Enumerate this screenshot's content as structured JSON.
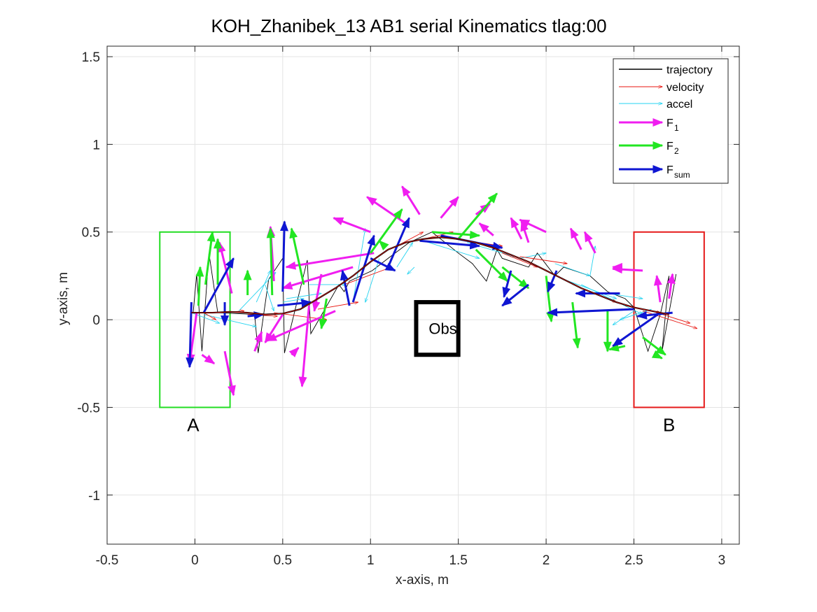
{
  "chart_data": {
    "type": "line",
    "title": "KOH_Zhanibek_13    AB1    serial    Kinematics tlag:00",
    "xlabel": "x-axis, m",
    "ylabel": "y-axis, m",
    "xlim": [
      -0.5,
      3.1
    ],
    "ylim": [
      -1.28,
      1.56
    ],
    "xticks": [
      -0.5,
      0,
      0.5,
      1,
      1.5,
      2,
      2.5,
      3
    ],
    "xtick_labels": [
      "-0.5",
      "0",
      "0.5",
      "1",
      "1.5",
      "2",
      "2.5",
      "3"
    ],
    "yticks": [
      -1,
      -0.5,
      0,
      0.5,
      1,
      1.5
    ],
    "ytick_labels": [
      "-1",
      "-0.5",
      "0",
      "0.5",
      "1",
      "1.5"
    ],
    "grid": true,
    "legend_position": "top-right",
    "colors": {
      "trajectory": "#000000",
      "velocity": "#e8150f",
      "accel": "#23d3f0",
      "F1": "#f01ef0",
      "F2": "#22e622",
      "Fsum": "#0f16d2",
      "regionA": "#22dd22",
      "regionB": "#e51a1a",
      "obstacle": "#000000"
    },
    "legend": [
      {
        "key": "trajectory",
        "label": "trajectory",
        "sub": ""
      },
      {
        "key": "velocity",
        "label": "velocity",
        "sub": ""
      },
      {
        "key": "accel",
        "label": "accel",
        "sub": ""
      },
      {
        "key": "F1",
        "label": "F",
        "sub": "1"
      },
      {
        "key": "F2",
        "label": "F",
        "sub": "2"
      },
      {
        "key": "Fsum",
        "label": "F",
        "sub": "sum"
      }
    ],
    "regions": [
      {
        "name": "A",
        "color": "regionA",
        "x": [
          -0.2,
          0.2
        ],
        "y": [
          -0.5,
          0.5
        ],
        "label_at": [
          -0.01,
          -0.6
        ]
      },
      {
        "name": "B",
        "color": "regionB",
        "x": [
          2.5,
          2.9
        ],
        "y": [
          -0.5,
          0.5
        ],
        "label_at": [
          2.7,
          -0.6
        ]
      }
    ],
    "obstacle": {
      "label": "Obs",
      "x": [
        1.26,
        1.5
      ],
      "y": [
        -0.2,
        0.1
      ]
    },
    "trajectory": [
      [
        -0.02,
        0.04
      ],
      [
        0.1,
        0.04
      ],
      [
        0.2,
        0.045
      ],
      [
        0.3,
        0.04
      ],
      [
        0.4,
        0.03
      ],
      [
        0.5,
        0.035
      ],
      [
        0.6,
        0.06
      ],
      [
        0.7,
        0.12
      ],
      [
        0.8,
        0.18
      ],
      [
        0.9,
        0.25
      ],
      [
        1.0,
        0.33
      ],
      [
        1.1,
        0.4
      ],
      [
        1.2,
        0.44
      ],
      [
        1.3,
        0.46
      ],
      [
        1.4,
        0.47
      ],
      [
        1.5,
        0.46
      ],
      [
        1.6,
        0.44
      ],
      [
        1.7,
        0.41
      ],
      [
        1.8,
        0.37
      ],
      [
        1.9,
        0.33
      ],
      [
        2.0,
        0.28
      ],
      [
        2.1,
        0.23
      ],
      [
        2.2,
        0.18
      ],
      [
        2.3,
        0.14
      ],
      [
        2.4,
        0.1
      ],
      [
        2.5,
        0.07
      ],
      [
        2.6,
        0.05
      ],
      [
        2.7,
        0.03
      ]
    ],
    "zigzag": [
      [
        -0.01,
        0.04
      ],
      [
        0.01,
        0.26
      ],
      [
        0.04,
        -0.18
      ],
      [
        0.08,
        0.38
      ],
      [
        0.13,
        0.04
      ],
      [
        0.34,
        0.03
      ],
      [
        0.36,
        -0.19
      ],
      [
        0.42,
        0.23
      ],
      [
        0.5,
        0.35
      ],
      [
        0.51,
        -0.19
      ],
      [
        0.64,
        0.34
      ],
      [
        0.66,
        -0.08
      ],
      [
        0.82,
        0.2
      ],
      [
        0.85,
        0.16
      ],
      [
        0.88,
        0.22
      ],
      [
        1.01,
        0.28
      ],
      [
        1.1,
        0.35
      ],
      [
        1.22,
        0.44
      ],
      [
        1.35,
        0.5
      ],
      [
        1.5,
        0.38
      ],
      [
        1.58,
        0.32
      ],
      [
        1.66,
        0.22
      ],
      [
        1.72,
        0.4
      ],
      [
        1.75,
        0.35
      ],
      [
        1.9,
        0.3
      ],
      [
        1.95,
        0.38
      ],
      [
        2.05,
        0.25
      ],
      [
        2.1,
        0.3
      ],
      [
        2.25,
        0.25
      ],
      [
        2.35,
        0.16
      ],
      [
        2.45,
        0.12
      ],
      [
        2.5,
        0.07
      ],
      [
        2.58,
        -0.18
      ],
      [
        2.65,
        0.03
      ],
      [
        2.7,
        0.25
      ],
      [
        2.66,
        -0.18
      ],
      [
        2.74,
        0.26
      ]
    ],
    "arrows": {
      "velocity": [
        [
          0.05,
          0.04,
          0.12,
          0.0
        ],
        [
          0.15,
          0.04,
          0.28,
          0.05
        ],
        [
          0.3,
          0.03,
          0.47,
          0.02
        ],
        [
          0.45,
          0.04,
          0.75,
          0.0
        ],
        [
          0.7,
          0.06,
          0.93,
          0.1
        ],
        [
          0.85,
          0.2,
          1.12,
          0.3
        ],
        [
          1.15,
          0.42,
          1.3,
          0.5
        ],
        [
          1.3,
          0.46,
          1.47,
          0.5
        ],
        [
          1.55,
          0.45,
          1.75,
          0.42
        ],
        [
          1.75,
          0.38,
          1.95,
          0.3
        ],
        [
          1.85,
          0.36,
          2.12,
          0.32
        ],
        [
          2.2,
          0.18,
          2.4,
          0.1
        ],
        [
          2.45,
          0.08,
          2.65,
          0.04
        ],
        [
          2.55,
          0.05,
          2.86,
          -0.05
        ],
        [
          2.6,
          0.05,
          2.82,
          -0.02
        ]
      ],
      "accel": [
        [
          -0.02,
          0.04,
          0.14,
          -0.02
        ],
        [
          0.05,
          0.03,
          0.35,
          -0.04
        ],
        [
          0.25,
          0.05,
          0.46,
          0.27
        ],
        [
          0.35,
          0.1,
          0.43,
          0.28
        ],
        [
          0.4,
          0.2,
          0.45,
          0.05
        ],
        [
          0.5,
          0.1,
          0.62,
          0.12
        ],
        [
          0.52,
          0.12,
          0.72,
          0.15
        ],
        [
          0.65,
          0.2,
          0.86,
          0.2
        ],
        [
          0.9,
          0.1,
          0.97,
          0.52
        ],
        [
          1.05,
          0.35,
          0.97,
          0.1
        ],
        [
          1.15,
          0.3,
          1.24,
          0.44
        ],
        [
          1.25,
          0.3,
          1.21,
          0.26
        ],
        [
          1.3,
          0.45,
          1.62,
          0.35
        ],
        [
          1.55,
          0.44,
          1.82,
          0.36
        ],
        [
          1.85,
          0.35,
          2.0,
          0.38
        ],
        [
          2.05,
          0.32,
          2.25,
          0.25
        ],
        [
          2.1,
          0.23,
          2.4,
          0.12
        ],
        [
          2.2,
          0.2,
          2.55,
          0.03
        ],
        [
          2.25,
          0.25,
          2.28,
          0.42
        ],
        [
          2.35,
          0.15,
          2.55,
          0.12
        ],
        [
          2.5,
          0.05,
          2.38,
          -0.03
        ],
        [
          2.6,
          0.06,
          2.42,
          0.0
        ]
      ],
      "F1": [
        [
          0.04,
          -0.2,
          0.11,
          -0.25
        ],
        [
          0.17,
          -0.18,
          0.22,
          -0.43
        ],
        [
          0.01,
          0.04,
          -0.03,
          -0.25
        ],
        [
          0.21,
          0.15,
          0.14,
          0.44
        ],
        [
          0.34,
          -0.18,
          0.38,
          -0.07
        ],
        [
          0.45,
          0.22,
          0.43,
          0.53
        ],
        [
          0.5,
          0.03,
          0.4,
          -0.13
        ],
        [
          0.55,
          -0.2,
          0.59,
          -0.16
        ],
        [
          0.65,
          0.08,
          0.61,
          -0.38
        ],
        [
          0.72,
          0.26,
          0.68,
          0.05
        ],
        [
          0.8,
          0.05,
          0.41,
          -0.12
        ],
        [
          0.9,
          0.3,
          0.5,
          0.18
        ],
        [
          1.02,
          0.38,
          0.52,
          0.3
        ],
        [
          1.0,
          0.5,
          0.79,
          0.58
        ],
        [
          1.2,
          0.55,
          0.98,
          0.7
        ],
        [
          1.28,
          0.6,
          1.18,
          0.76
        ],
        [
          1.4,
          0.58,
          1.5,
          0.7
        ],
        [
          1.6,
          0.6,
          1.68,
          0.66
        ],
        [
          1.7,
          0.48,
          1.62,
          0.55
        ],
        [
          1.86,
          0.46,
          1.8,
          0.58
        ],
        [
          1.9,
          0.44,
          1.86,
          0.56
        ],
        [
          2.0,
          0.5,
          1.85,
          0.57
        ],
        [
          2.2,
          0.4,
          2.14,
          0.52
        ],
        [
          2.28,
          0.38,
          2.22,
          0.5
        ],
        [
          2.42,
          0.3,
          2.38,
          0.3
        ],
        [
          2.55,
          0.28,
          2.38,
          0.29
        ],
        [
          2.65,
          0.1,
          2.63,
          0.25
        ],
        [
          2.7,
          0.12,
          2.72,
          0.26
        ]
      ],
      "F2": [
        [
          0.02,
          0.08,
          0.03,
          0.3
        ],
        [
          0.06,
          0.2,
          0.1,
          0.5
        ],
        [
          0.13,
          0.2,
          0.13,
          0.46
        ],
        [
          0.3,
          0.14,
          0.3,
          0.28
        ],
        [
          0.44,
          0.14,
          0.43,
          0.52
        ],
        [
          0.62,
          0.2,
          0.55,
          0.52
        ],
        [
          0.75,
          0.12,
          0.72,
          -0.05
        ],
        [
          1.0,
          0.38,
          1.18,
          0.63
        ],
        [
          1.08,
          0.42,
          1.05,
          0.45
        ],
        [
          1.35,
          0.5,
          1.62,
          0.48
        ],
        [
          1.5,
          0.46,
          1.72,
          0.72
        ],
        [
          1.6,
          0.4,
          1.78,
          0.22
        ],
        [
          1.75,
          0.3,
          1.9,
          0.18
        ],
        [
          2.0,
          0.25,
          2.03,
          -0.01
        ],
        [
          2.15,
          0.1,
          2.18,
          -0.16
        ],
        [
          2.35,
          0.05,
          2.35,
          -0.18
        ],
        [
          2.45,
          -0.15,
          2.36,
          -0.17
        ],
        [
          2.55,
          -0.1,
          2.68,
          -0.2
        ],
        [
          2.62,
          -0.2,
          2.66,
          -0.22
        ]
      ],
      "Fsum": [
        [
          -0.02,
          0.1,
          -0.03,
          -0.27
        ],
        [
          0.05,
          0.04,
          0.22,
          0.35
        ],
        [
          0.17,
          0.1,
          0.17,
          -0.03
        ],
        [
          0.3,
          0.02,
          0.39,
          0.03
        ],
        [
          0.5,
          0.16,
          0.51,
          0.56
        ],
        [
          0.47,
          0.08,
          0.66,
          0.1
        ],
        [
          0.88,
          0.08,
          0.84,
          0.28
        ],
        [
          0.9,
          0.1,
          1.02,
          0.48
        ],
        [
          1.0,
          0.35,
          1.14,
          0.28
        ],
        [
          1.1,
          0.3,
          1.22,
          0.58
        ],
        [
          1.28,
          0.45,
          1.62,
          0.42
        ],
        [
          1.4,
          0.48,
          1.75,
          0.41
        ],
        [
          1.8,
          0.28,
          1.76,
          0.13
        ],
        [
          1.9,
          0.2,
          1.75,
          0.08
        ],
        [
          2.06,
          0.28,
          2.01,
          0.16
        ],
        [
          2.42,
          0.15,
          2.17,
          0.15
        ],
        [
          2.5,
          0.06,
          2.01,
          0.04
        ],
        [
          2.65,
          0.04,
          2.38,
          -0.15
        ],
        [
          2.72,
          0.04,
          2.52,
          0.02
        ]
      ]
    }
  }
}
